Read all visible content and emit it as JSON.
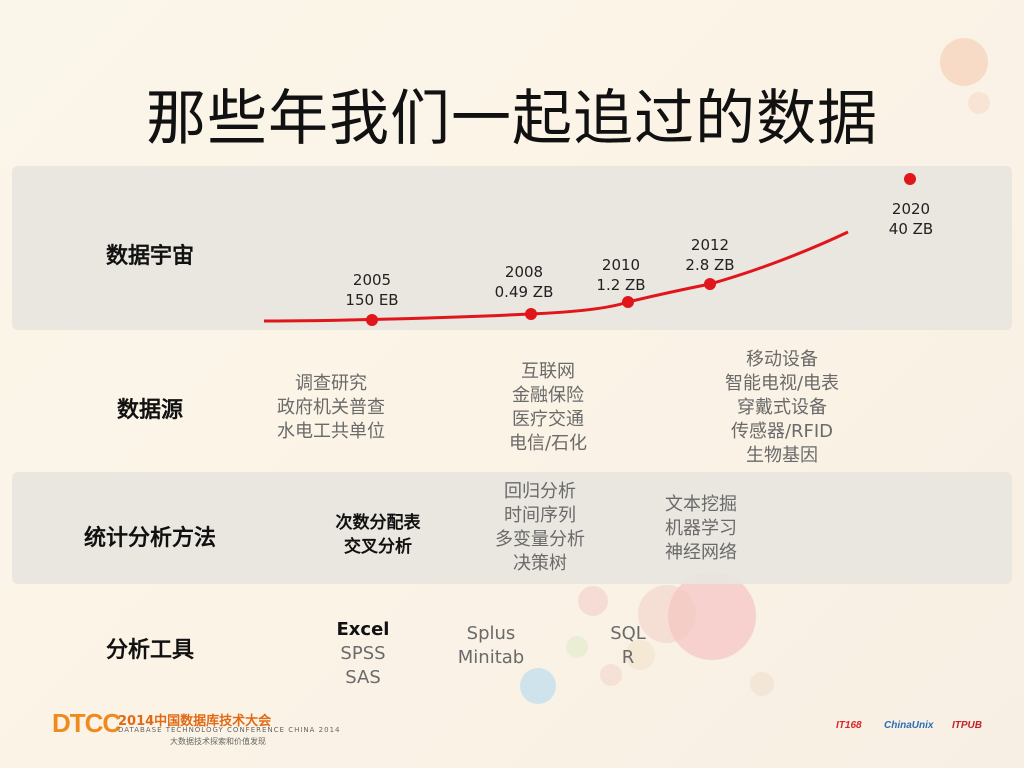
{
  "title": "那些年我们一起追过的数据",
  "rows": {
    "universe": "数据宇宙",
    "sources": "数据源",
    "methods": "统计分析方法",
    "tools": "分析工具"
  },
  "timeline": [
    {
      "year": "2005",
      "size": "150 EB"
    },
    {
      "year": "2008",
      "size": "0.49 ZB"
    },
    {
      "year": "2010",
      "size": "1.2 ZB"
    },
    {
      "year": "2012",
      "size": "2.8 ZB"
    },
    {
      "year": "2020",
      "size": "40 ZB"
    }
  ],
  "sources": [
    [
      "调查研究",
      "政府机关普查",
      "水电工共单位"
    ],
    [
      "互联网",
      "金融保险",
      "医疗交通",
      "电信/石化"
    ],
    [
      "移动设备",
      "智能电视/电表",
      "穿戴式设备",
      "传感器/RFID",
      "生物基因"
    ]
  ],
  "methods": [
    [
      "次数分配表",
      "交叉分析"
    ],
    [
      "回归分析",
      "时间序列",
      "多变量分析",
      "决策树"
    ],
    [
      "文本挖掘",
      "机器学习",
      "神经网络"
    ]
  ],
  "tools": [
    [
      "Excel",
      "SPSS",
      "SAS"
    ],
    [
      "Splus",
      "Minitab"
    ],
    [
      "SQL",
      "R"
    ]
  ],
  "footer": {
    "logo": "DTCC",
    "title": "2014中国数据库技术大会",
    "subtitle": "DATABASE TECHNOLOGY CONFERENCE CHINA 2014",
    "tagline": "大数据技术探索和价值发现",
    "sponsors": [
      "IT168",
      "ChinaUnix",
      "ITPUB"
    ]
  },
  "colors": {
    "accent": "#e0161b",
    "band": "#e8e5e0",
    "footer_orange": "#f08a1e"
  }
}
